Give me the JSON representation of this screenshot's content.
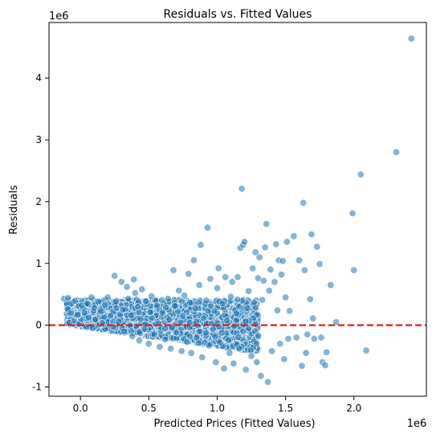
{
  "chart_data": {
    "type": "scatter",
    "title": "Residuals vs. Fitted Values",
    "xlabel": "Predicted Prices (Fitted Values)",
    "ylabel": "Residuals",
    "x_offset_label": "1e6",
    "y_offset_label": "1e6",
    "xlim": [
      -230000,
      2530000
    ],
    "ylim": [
      -1150000,
      4900000
    ],
    "x_ticks": [
      0,
      500000,
      1000000,
      1500000,
      2000000
    ],
    "x_tick_labels": [
      "0.0",
      "0.5",
      "1.0",
      "1.5",
      "2.0"
    ],
    "y_ticks": [
      -1000000,
      0,
      1000000,
      2000000,
      3000000,
      4000000
    ],
    "y_tick_labels": [
      "-1",
      "0",
      "1",
      "2",
      "3",
      "4"
    ],
    "grid": false,
    "marker_color": "#1f77b4",
    "marker_alpha": 0.55,
    "reference_line": {
      "y": 0,
      "color": "#e41a1c",
      "style": "dashed"
    },
    "series": [
      {
        "values_note": "",
        "points": [
          [
            -120000,
            430000
          ],
          [
            -90000,
            440000
          ],
          [
            -70000,
            200000
          ],
          [
            -40000,
            390000
          ],
          [
            -20000,
            170000
          ],
          [
            10000,
            320000
          ],
          [
            30000,
            200000
          ],
          [
            50000,
            350000
          ],
          [
            60000,
            120000
          ],
          [
            80000,
            450000
          ],
          [
            100000,
            280000
          ],
          [
            110000,
            90000
          ],
          [
            130000,
            380000
          ],
          [
            150000,
            220000
          ],
          [
            160000,
            40000
          ],
          [
            180000,
            330000
          ],
          [
            200000,
            450000
          ],
          [
            220000,
            150000
          ],
          [
            240000,
            -30000
          ],
          [
            250000,
            800000
          ],
          [
            260000,
            380000
          ],
          [
            280000,
            60000
          ],
          [
            300000,
            700000
          ],
          [
            310000,
            250000
          ],
          [
            320000,
            -100000
          ],
          [
            340000,
            620000
          ],
          [
            350000,
            430000
          ],
          [
            370000,
            160000
          ],
          [
            380000,
            -180000
          ],
          [
            390000,
            740000
          ],
          [
            400000,
            520000
          ],
          [
            420000,
            300000
          ],
          [
            430000,
            -250000
          ],
          [
            440000,
            100000
          ],
          [
            450000,
            580000
          ],
          [
            470000,
            -60000
          ],
          [
            480000,
            390000
          ],
          [
            500000,
            -300000
          ],
          [
            510000,
            210000
          ],
          [
            520000,
            470000
          ],
          [
            540000,
            -150000
          ],
          [
            560000,
            320000
          ],
          [
            570000,
            30000
          ],
          [
            580000,
            -350000
          ],
          [
            600000,
            200000
          ],
          [
            620000,
            -230000
          ],
          [
            640000,
            430000
          ],
          [
            650000,
            90000
          ],
          [
            660000,
            -380000
          ],
          [
            680000,
            890000
          ],
          [
            690000,
            310000
          ],
          [
            700000,
            -120000
          ],
          [
            720000,
            560000
          ],
          [
            740000,
            -420000
          ],
          [
            750000,
            150000
          ],
          [
            760000,
            480000
          ],
          [
            780000,
            -270000
          ],
          [
            790000,
            830000
          ],
          [
            800000,
            40000
          ],
          [
            810000,
            -450000
          ],
          [
            830000,
            1050000
          ],
          [
            840000,
            270000
          ],
          [
            850000,
            -200000
          ],
          [
            870000,
            650000
          ],
          [
            880000,
            1300000
          ],
          [
            890000,
            -520000
          ],
          [
            900000,
            110000
          ],
          [
            920000,
            400000
          ],
          [
            930000,
            1580000
          ],
          [
            940000,
            -330000
          ],
          [
            950000,
            750000
          ],
          [
            970000,
            -60000
          ],
          [
            980000,
            230000
          ],
          [
            990000,
            -600000
          ],
          [
            1000000,
            600000
          ],
          [
            1010000,
            920000
          ],
          [
            1020000,
            -280000
          ],
          [
            1040000,
            350000
          ],
          [
            1050000,
            -700000
          ],
          [
            1060000,
            780000
          ],
          [
            1070000,
            80000
          ],
          [
            1090000,
            -450000
          ],
          [
            1100000,
            460000
          ],
          [
            1110000,
            700000
          ],
          [
            1120000,
            -620000
          ],
          [
            1140000,
            190000
          ],
          [
            1150000,
            780000
          ],
          [
            1160000,
            -380000
          ],
          [
            1170000,
            1250000
          ],
          [
            1180000,
            2210000
          ],
          [
            1190000,
            1300000
          ],
          [
            1200000,
            1350000
          ],
          [
            1210000,
            -720000
          ],
          [
            1220000,
            280000
          ],
          [
            1230000,
            550000
          ],
          [
            1250000,
            -500000
          ],
          [
            1260000,
            920000
          ],
          [
            1270000,
            370000
          ],
          [
            1280000,
            1180000
          ],
          [
            1290000,
            -600000
          ],
          [
            1300000,
            760000
          ],
          [
            1310000,
            1100000
          ],
          [
            1320000,
            -820000
          ],
          [
            1330000,
            410000
          ],
          [
            1340000,
            720000
          ],
          [
            1350000,
            1260000
          ],
          [
            1360000,
            1640000
          ],
          [
            1370000,
            -920000
          ],
          [
            1380000,
            560000
          ],
          [
            1390000,
            900000
          ],
          [
            1400000,
            -420000
          ],
          [
            1420000,
            700000
          ],
          [
            1430000,
            1310000
          ],
          [
            1440000,
            240000
          ],
          [
            1450000,
            1050000
          ],
          [
            1460000,
            -300000
          ],
          [
            1470000,
            820000
          ],
          [
            1480000,
            1040000
          ],
          [
            1490000,
            -550000
          ],
          [
            1500000,
            450000
          ],
          [
            1510000,
            1350000
          ],
          [
            1520000,
            -220000
          ],
          [
            1530000,
            230000
          ],
          [
            1560000,
            1440000
          ],
          [
            1580000,
            -200000
          ],
          [
            1600000,
            1050000
          ],
          [
            1620000,
            -660000
          ],
          [
            1630000,
            1980000
          ],
          [
            1640000,
            890000
          ],
          [
            1650000,
            -450000
          ],
          [
            1660000,
            -150000
          ],
          [
            1680000,
            420000
          ],
          [
            1690000,
            1470000
          ],
          [
            1700000,
            110000
          ],
          [
            1710000,
            -220000
          ],
          [
            1730000,
            1270000
          ],
          [
            1750000,
            990000
          ],
          [
            1760000,
            -200000
          ],
          [
            1770000,
            -600000
          ],
          [
            1790000,
            -650000
          ],
          [
            1800000,
            -440000
          ],
          [
            1830000,
            650000
          ],
          [
            1870000,
            50000
          ],
          [
            1990000,
            1810000
          ],
          [
            2000000,
            890000
          ],
          [
            2050000,
            2440000
          ],
          [
            2090000,
            -410000
          ],
          [
            2310000,
            2800000
          ],
          [
            2420000,
            4640000
          ]
        ],
        "dense_cloud": {
          "x_range": [
            -100000,
            1350000
          ],
          "lower_boundary": "approximately -0.32 * x, clipped above -500000",
          "upper_boundary": "approximately 400000"
        }
      }
    ]
  }
}
